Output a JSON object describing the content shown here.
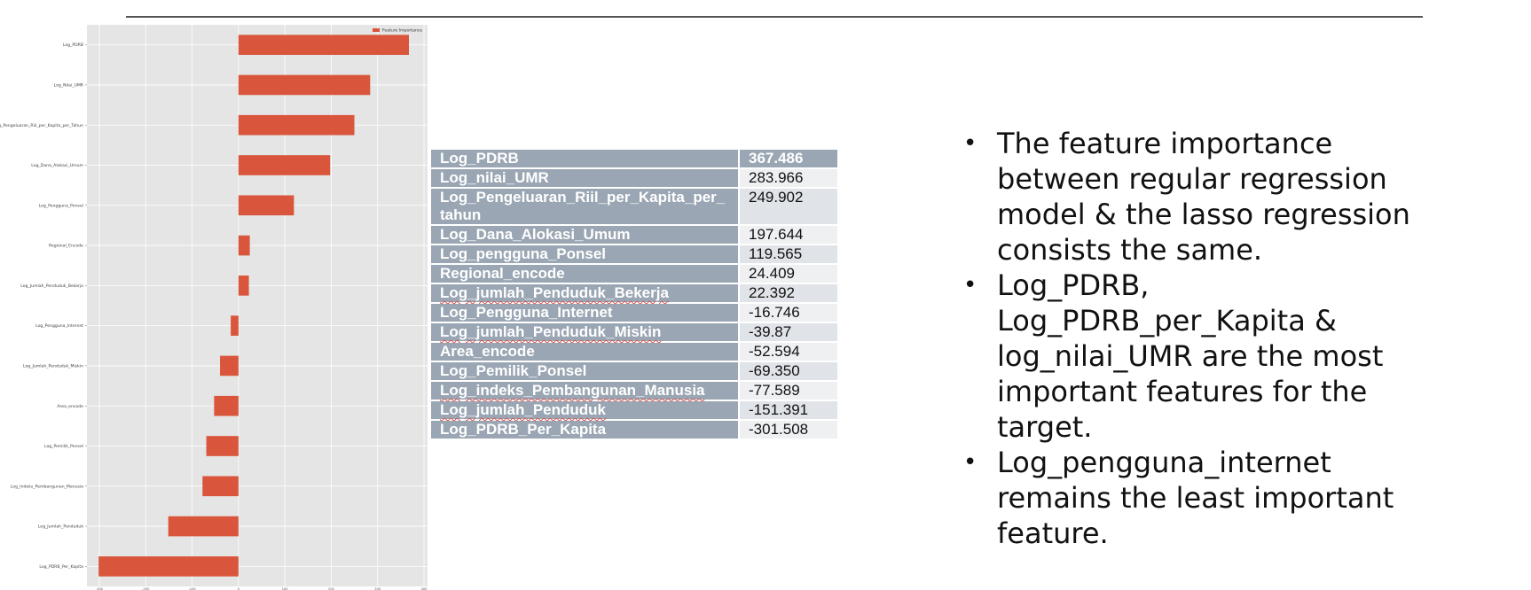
{
  "chart_data": {
    "type": "bar",
    "orientation": "horizontal",
    "categories": [
      "Log_PDRB",
      "Log_Nilai_UMR",
      "Log_Pengeluaran_Riil_per_Kapita_per_Tahun",
      "Log_Dana_Alokasi_Umum",
      "Log_Pengguna_Ponsel",
      "Regional_Encode",
      "Log_Jumlah_Penduduk_Bekerja",
      "Log_Pengguna_Internet",
      "Log_Jumlah_Penduduk_Miskin",
      "Area_encode",
      "Log_Pemilik_Ponsel",
      "Log_Indeks_Pembangunan_Manusia",
      "Log_Jumlah_Penduduk",
      "Log_PDRB_Per_Kapita"
    ],
    "values": [
      367.486,
      283.966,
      249.902,
      197.644,
      119.565,
      24.409,
      22.392,
      -16.746,
      -39.87,
      -52.594,
      -69.35,
      -77.589,
      -151.391,
      -301.508
    ],
    "xlim": [
      -300,
      400
    ],
    "xticks": [
      -300,
      -200,
      -100,
      0,
      100,
      200,
      300,
      400
    ],
    "xtick_labels": [
      "-300",
      "-200",
      "-100",
      "0",
      "100",
      "200",
      "300",
      "400"
    ],
    "legend": "Feature Importance",
    "legend_position": "top-right",
    "grid": true,
    "colors": {
      "bar": "#d9563c",
      "plot_bg": "#e5e5e5",
      "grid": "#ffffff"
    }
  },
  "table": {
    "rows": [
      {
        "name": "Log_PDRB",
        "value": "367.486"
      },
      {
        "name": "Log_nilai_UMR",
        "value": "283.966"
      },
      {
        "name": "Log_Pengeluaran_Riil_per_Kapita_per_tahun",
        "value": "249.902"
      },
      {
        "name": "Log_Dana_Alokasi_Umum",
        "value": "197.644"
      },
      {
        "name": "Log_pengguna_Ponsel",
        "value": "119.565"
      },
      {
        "name": "Regional_encode",
        "value": "24.409"
      },
      {
        "name": "Log_jumlah_Penduduk_Bekerja",
        "value": "22.392"
      },
      {
        "name": "Log_Pengguna_Internet",
        "value": "-16.746"
      },
      {
        "name": "Log_jumlah_Penduduk_Miskin",
        "value": "-39.87"
      },
      {
        "name": "Area_encode",
        "value": "-52.594"
      },
      {
        "name": "Log_Pemilik_Ponsel",
        "value": "-69.350"
      },
      {
        "name": "Log_indeks_Pembangunan_Manusia",
        "value": "-77.589"
      },
      {
        "name": "Log_jumlah_Penduduk",
        "value": "-151.391"
      },
      {
        "name": "Log_PDRB_Per_Kapita",
        "value": "-301.508"
      }
    ]
  },
  "bullets": [
    "The feature importance between regular regression model & the lasso regression consists the same.",
    "Log_PDRB, Log_PDRB_per_Kapita & log_nilai_UMR are the most important features for the target.",
    "Log_pengguna_internet remains the least important feature."
  ]
}
